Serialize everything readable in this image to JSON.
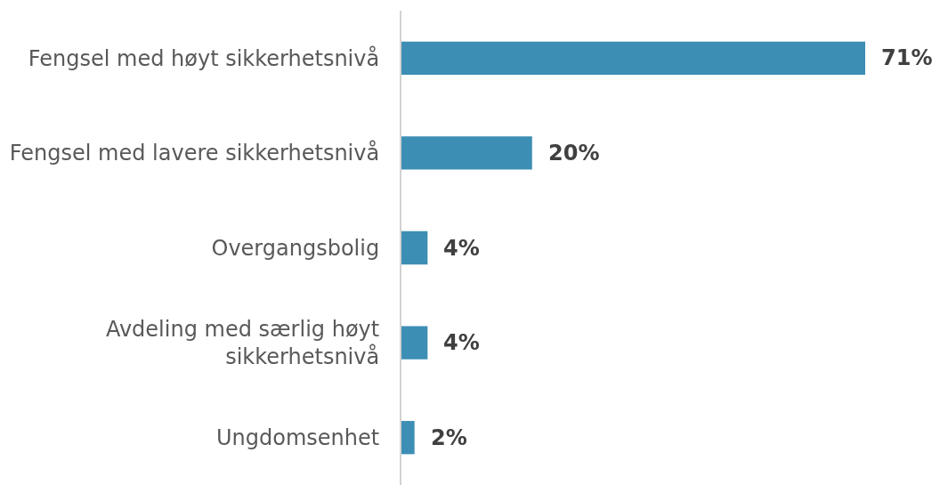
{
  "chart_data": {
    "type": "bar",
    "orientation": "horizontal",
    "categories": [
      "Fengsel med høyt sikkerhetsnivå",
      "Fengsel med lavere sikkerhetsnivå",
      "Overgangsbolig",
      "Avdeling med særlig høyt sikkerhetsnivå",
      "Ungdomsenhet"
    ],
    "values": [
      71,
      20,
      4,
      4,
      2
    ],
    "color": "#3d8eb4",
    "value_labels": [
      "71%",
      "20%",
      "4%",
      "4%",
      "2%"
    ],
    "tick_labels": "y"
  }
}
